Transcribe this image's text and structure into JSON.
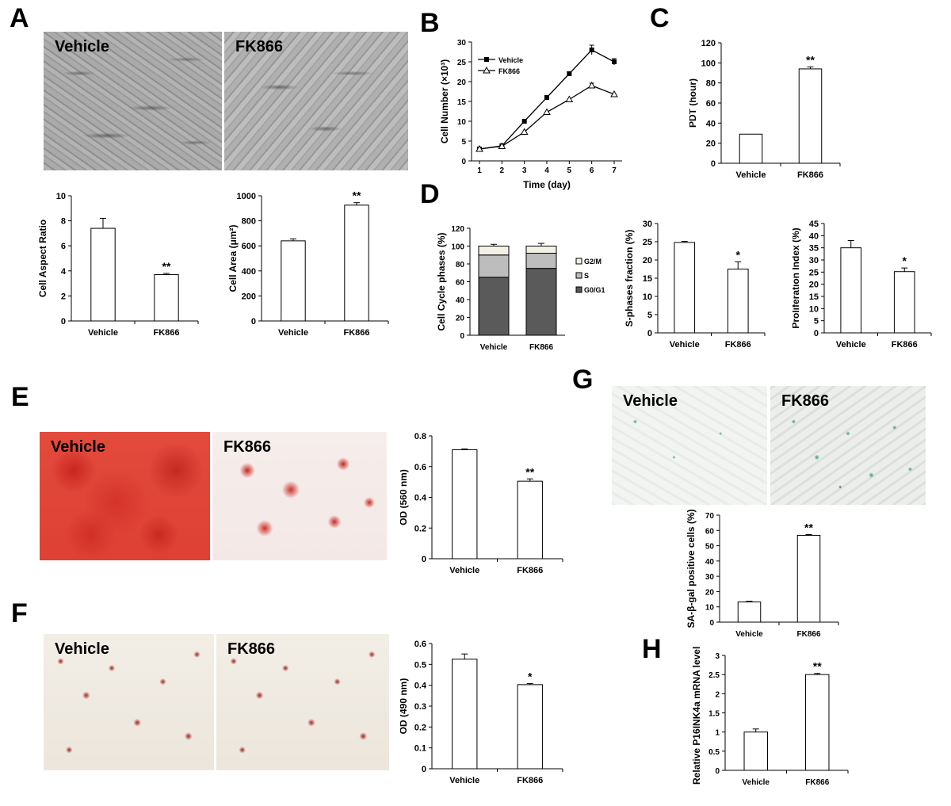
{
  "panel_labels": {
    "A": "A",
    "B": "B",
    "C": "C",
    "D": "D",
    "E": "E",
    "F": "F",
    "G": "G",
    "H": "H"
  },
  "photos": {
    "A_left": "Vehicle",
    "A_right": "FK866",
    "E_left": "Vehicle",
    "E_right": "FK866",
    "F_left": "Vehicle",
    "F_right": "FK866",
    "G_left": "Vehicle",
    "G_right": "FK866"
  },
  "chart_data": [
    {
      "id": "A1",
      "type": "bar",
      "categories": [
        "Vehicle",
        "FK866"
      ],
      "values": [
        7.4,
        3.7
      ],
      "errors": [
        0.8,
        0.1
      ],
      "sig": [
        "",
        "**"
      ],
      "ylabel": "Cell Aspect Ratio",
      "ylim": [
        0,
        10
      ],
      "yticks": [
        "0",
        "2",
        "4",
        "6",
        "8",
        "10"
      ]
    },
    {
      "id": "A2",
      "type": "bar",
      "categories": [
        "Vehicle",
        "FK866"
      ],
      "values": [
        640,
        925
      ],
      "errors": [
        15,
        20
      ],
      "sig": [
        "",
        "**"
      ],
      "ylabel": "Cell Area (μm²)",
      "ylim": [
        0,
        1000
      ],
      "yticks": [
        "0",
        "200",
        "400",
        "600",
        "800",
        "1000"
      ]
    },
    {
      "id": "B",
      "type": "line",
      "x": [
        1,
        2,
        3,
        4,
        5,
        6,
        7
      ],
      "series": [
        {
          "name": "Vehicle",
          "values": [
            3,
            3.8,
            10,
            16,
            22,
            28,
            25
          ],
          "errors": [
            0.3,
            0.3,
            0.3,
            0.3,
            0.5,
            1.2,
            0.8
          ],
          "marker": "square"
        },
        {
          "name": "FK866",
          "values": [
            3,
            3.7,
            7.3,
            12.3,
            15.5,
            19,
            16.8
          ],
          "errors": [
            0.3,
            0.3,
            0.3,
            0.3,
            0.3,
            0.6,
            0.4
          ],
          "marker": "triangle"
        }
      ],
      "xlabel": "Time (day)",
      "ylabel": "Cell  Number (×10³)",
      "ylim": [
        0,
        30
      ],
      "yticks": [
        "0",
        "5",
        "10",
        "15",
        "20",
        "25",
        "30"
      ],
      "xticks": [
        "1",
        "2",
        "3",
        "4",
        "5",
        "6",
        "7"
      ],
      "legend": "top-left"
    },
    {
      "id": "C",
      "type": "bar",
      "categories": [
        "Vehicle",
        "FK866"
      ],
      "values": [
        29,
        94
      ],
      "errors": [
        0,
        2
      ],
      "sig": [
        "",
        "**"
      ],
      "ylabel": "PDT (hour)",
      "ylim": [
        0,
        120
      ],
      "yticks": [
        "0",
        "20",
        "40",
        "60",
        "80",
        "100",
        "120"
      ]
    },
    {
      "id": "D1",
      "type": "bar",
      "stacked": true,
      "categories": [
        "Vehicle",
        "FK866"
      ],
      "series": [
        {
          "name": "G0/G1",
          "values": [
            65,
            75
          ]
        },
        {
          "name": "S",
          "values": [
            25,
            17
          ]
        },
        {
          "name": "G2/M",
          "values": [
            10,
            8
          ]
        }
      ],
      "errors": [
        2,
        3
      ],
      "ylabel": "Cell Cycle phases (%)",
      "ylim": [
        0,
        120
      ],
      "yticks": [
        "0",
        "20",
        "40",
        "60",
        "80",
        "100",
        "120"
      ],
      "legend": "right"
    },
    {
      "id": "D2",
      "type": "bar",
      "categories": [
        "Vehicle",
        "FK866"
      ],
      "values": [
        24.8,
        17.5
      ],
      "errors": [
        0.3,
        2
      ],
      "sig": [
        "",
        "*"
      ],
      "ylabel": "S-phases fraction (%)",
      "ylim": [
        0,
        30
      ],
      "yticks": [
        "0",
        "5",
        "10",
        "15",
        "20",
        "25",
        "30"
      ]
    },
    {
      "id": "D3",
      "type": "bar",
      "categories": [
        "Vehicle",
        "FK866"
      ],
      "values": [
        35,
        25.2
      ],
      "errors": [
        3,
        1.5
      ],
      "sig": [
        "",
        "*"
      ],
      "ylabel": "Proliferation Index (%)",
      "ylim": [
        0,
        45
      ],
      "yticks": [
        "0",
        "5",
        "10",
        "15",
        "20",
        "25",
        "30",
        "35",
        "40",
        "45"
      ]
    },
    {
      "id": "E",
      "type": "bar",
      "categories": [
        "Vehicle",
        "FK866"
      ],
      "values": [
        0.71,
        0.505
      ],
      "errors": [
        0.005,
        0.015
      ],
      "sig": [
        "",
        "**"
      ],
      "ylabel": "OD (560 nm)",
      "ylim": [
        0,
        0.8
      ],
      "yticks": [
        "0",
        "0.2",
        "0.4",
        "0.6",
        "0.8"
      ]
    },
    {
      "id": "F",
      "type": "bar",
      "categories": [
        "Vehicle",
        "FK866"
      ],
      "values": [
        0.525,
        0.403
      ],
      "errors": [
        0.025,
        0.005
      ],
      "sig": [
        "",
        "*"
      ],
      "ylabel": "OD (490 nm)",
      "ylim": [
        0,
        0.6
      ],
      "yticks": [
        "0",
        "0.1",
        "0.2",
        "0.3",
        "0.4",
        "0.5",
        "0.6"
      ]
    },
    {
      "id": "G",
      "type": "bar",
      "categories": [
        "Vehicle",
        "FK866"
      ],
      "values": [
        13.2,
        56.8
      ],
      "errors": [
        0.5,
        0.5
      ],
      "sig": [
        "",
        "**"
      ],
      "ylabel": "SA-β-gal positive cells (%)",
      "ylim": [
        0,
        70
      ],
      "yticks": [
        "0",
        "10",
        "20",
        "30",
        "40",
        "50",
        "60",
        "70"
      ]
    },
    {
      "id": "H",
      "type": "bar",
      "categories": [
        "Vehicle",
        "FK866"
      ],
      "values": [
        1.0,
        2.5
      ],
      "errors": [
        0.08,
        0.03
      ],
      "sig": [
        "",
        "**"
      ],
      "ylabel": "Relative P16INK4a mRNA levels",
      "ylim": [
        0,
        3
      ],
      "yticks": [
        "0",
        "0.5",
        "1",
        "1.5",
        "2",
        "2.5",
        "3"
      ]
    }
  ]
}
